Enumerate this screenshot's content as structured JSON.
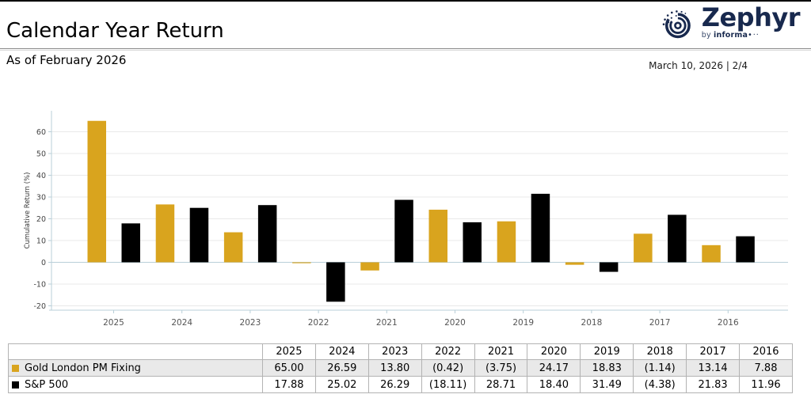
{
  "header": {
    "title": "Calendar Year Return",
    "subtitle": "As of February 2026",
    "date_page": "March 10, 2026 | 2/4",
    "logo": {
      "brand": "Zephyr",
      "byline_by": "by ",
      "byline_name": "informa",
      "byline_dots": "•··",
      "color": "#18294E"
    }
  },
  "chart_data": {
    "type": "bar",
    "title": "Calendar Year Return",
    "xlabel": "",
    "ylabel": "Cumulative Return (%)",
    "ylim": [
      -20,
      60
    ],
    "ytick_step": 10,
    "grid": true,
    "legend_position": "table-below",
    "categories": [
      "2025",
      "2024",
      "2023",
      "2022",
      "2021",
      "2020",
      "2019",
      "2018",
      "2017",
      "2016"
    ],
    "series": [
      {
        "name": "Gold London PM Fixing",
        "color": "#D9A41E",
        "values": [
          65.0,
          26.59,
          13.8,
          -0.42,
          -3.75,
          24.17,
          18.83,
          -1.14,
          13.14,
          7.88
        ]
      },
      {
        "name": "S&P 500",
        "color": "#000000",
        "values": [
          17.88,
          25.02,
          26.29,
          -18.11,
          28.71,
          18.4,
          31.49,
          -4.38,
          21.83,
          11.96
        ]
      }
    ]
  },
  "table": {
    "columns": [
      "",
      "2025",
      "2024",
      "2023",
      "2022",
      "2021",
      "2020",
      "2019",
      "2018",
      "2017",
      "2016"
    ],
    "rows": [
      {
        "label": "Gold London PM Fixing",
        "swatch": "#D9A41E",
        "values": [
          "65.00",
          "26.59",
          "13.80",
          "(0.42)",
          "(3.75)",
          "24.17",
          "18.83",
          "(1.14)",
          "13.14",
          "7.88"
        ]
      },
      {
        "label": "S&P 500",
        "swatch": "#000000",
        "values": [
          "17.88",
          "25.02",
          "26.29",
          "(18.11)",
          "28.71",
          "18.40",
          "31.49",
          "(4.38)",
          "21.83",
          "11.96"
        ]
      }
    ]
  }
}
